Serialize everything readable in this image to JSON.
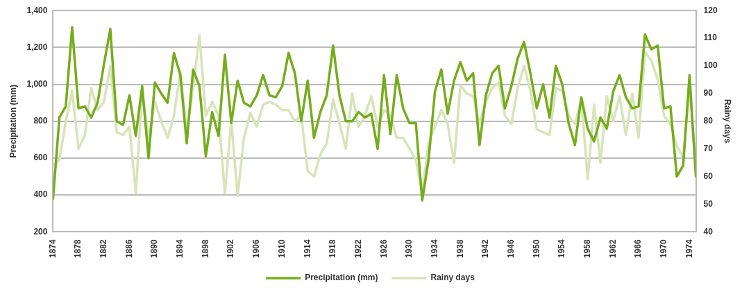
{
  "chart_data": {
    "type": "line",
    "x": [
      1874,
      1875,
      1876,
      1877,
      1878,
      1879,
      1880,
      1881,
      1882,
      1883,
      1884,
      1885,
      1886,
      1887,
      1888,
      1889,
      1890,
      1891,
      1892,
      1893,
      1894,
      1895,
      1896,
      1897,
      1898,
      1899,
      1900,
      1901,
      1902,
      1903,
      1904,
      1905,
      1906,
      1907,
      1908,
      1909,
      1910,
      1911,
      1912,
      1913,
      1914,
      1915,
      1916,
      1917,
      1918,
      1919,
      1920,
      1921,
      1922,
      1923,
      1924,
      1925,
      1926,
      1927,
      1928,
      1929,
      1930,
      1931,
      1932,
      1933,
      1934,
      1935,
      1936,
      1937,
      1938,
      1939,
      1940,
      1941,
      1942,
      1943,
      1944,
      1945,
      1946,
      1947,
      1948,
      1949,
      1950,
      1951,
      1952,
      1953,
      1954,
      1955,
      1956,
      1957,
      1958,
      1959,
      1960,
      1961,
      1962,
      1963,
      1964,
      1965,
      1966,
      1967,
      1968,
      1969,
      1970,
      1971,
      1972,
      1973,
      1974,
      1975
    ],
    "series": [
      {
        "name": "Precipitation (mm)",
        "color": "#76ac1c",
        "values": [
          380,
          820,
          880,
          1310,
          870,
          880,
          820,
          900,
          1110,
          1300,
          800,
          780,
          940,
          720,
          990,
          600,
          1010,
          950,
          900,
          1170,
          1050,
          680,
          1080,
          990,
          610,
          850,
          720,
          1160,
          790,
          1020,
          900,
          880,
          940,
          1050,
          940,
          930,
          990,
          1170,
          1060,
          800,
          1020,
          710,
          850,
          940,
          1210,
          940,
          800,
          800,
          850,
          820,
          840,
          650,
          1050,
          730,
          1050,
          870,
          790,
          790,
          370,
          590,
          960,
          1080,
          840,
          1020,
          1120,
          1020,
          1060,
          670,
          940,
          1060,
          1100,
          870,
          990,
          1140,
          1230,
          1060,
          870,
          1000,
          820,
          1100,
          1000,
          790,
          670,
          930,
          760,
          690,
          820,
          760,
          960,
          1050,
          930,
          870,
          880,
          1270,
          1190,
          1210,
          870,
          880,
          500,
          560,
          1050,
          500
        ]
      },
      {
        "name": "Rainy days",
        "color": "#d6e4b8",
        "axis": "y2",
        "values": [
          64,
          66,
          80,
          91,
          70,
          75,
          92,
          84,
          87,
          100,
          76,
          75,
          78,
          54,
          91,
          74,
          87,
          80,
          74,
          82,
          98,
          76,
          92,
          111,
          82,
          87,
          82,
          54,
          80,
          53,
          74,
          83,
          78,
          86,
          87,
          86,
          84,
          84,
          80,
          82,
          62,
          60,
          68,
          72,
          88,
          79,
          70,
          90,
          78,
          82,
          89,
          78,
          84,
          82,
          74,
          74,
          70,
          66,
          54,
          72,
          78,
          84,
          79,
          65,
          93,
          90,
          89,
          79,
          87,
          92,
          94,
          82,
          79,
          92,
          100,
          91,
          77,
          76,
          75,
          92,
          91,
          82,
          79,
          88,
          59,
          86,
          65,
          89,
          80,
          89,
          75,
          90,
          74,
          105,
          102,
          95,
          82,
          79,
          71,
          67,
          92,
          62
        ]
      }
    ],
    "xlim": [
      1874,
      1975
    ],
    "xticks": [
      1874,
      1878,
      1882,
      1886,
      1890,
      1894,
      1898,
      1902,
      1906,
      1910,
      1914,
      1918,
      1922,
      1926,
      1930,
      1934,
      1938,
      1942,
      1946,
      1950,
      1954,
      1958,
      1962,
      1966,
      1970,
      1974
    ],
    "ylim": [
      200,
      1400
    ],
    "yticks": [
      {
        "value": 200,
        "label": "200"
      },
      {
        "value": 400,
        "label": "400"
      },
      {
        "value": 600,
        "label": "600"
      },
      {
        "value": 800,
        "label": "800"
      },
      {
        "value": 1000,
        "label": "1,000"
      },
      {
        "value": 1200,
        "label": "1,200"
      },
      {
        "value": 1400,
        "label": "1,400"
      }
    ],
    "y2lim": [
      40,
      120
    ],
    "y2ticks": [
      40,
      50,
      60,
      70,
      80,
      90,
      100,
      110,
      120
    ],
    "ylabel": "Precipitation (mm)",
    "y2label": "Rainy days",
    "grid": "y",
    "legend": "bottom",
    "marker": "none",
    "line_style": "solid"
  }
}
